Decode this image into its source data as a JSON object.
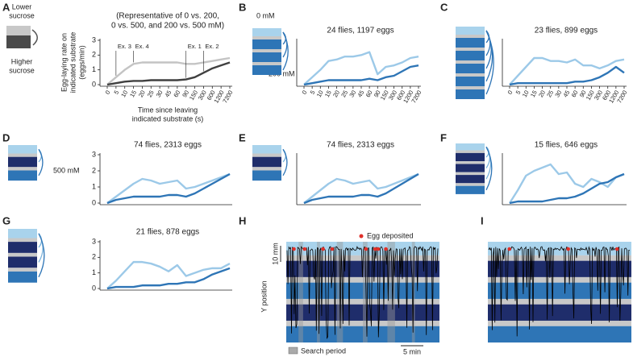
{
  "panel_labels": [
    "A",
    "B",
    "C",
    "D",
    "E",
    "F",
    "G",
    "H",
    "I"
  ],
  "schematic": {
    "lower": [
      "Lower",
      "sucrose"
    ],
    "higher": [
      "Higher",
      "sucrose"
    ],
    "concentrations": [
      "0 mM",
      "200 mM",
      "500 mM"
    ]
  },
  "trajectory": {
    "legend_egg": "Egg deposited",
    "scale_bar_y": "10 mm",
    "y_label": "Y position",
    "legend_search": "Search period",
    "scale_bar_x": "5 min"
  },
  "chart_data": [
    {
      "type": "line",
      "title": [
        "(Representative of 0 vs. 200,",
        "0 vs. 500, and 200 vs. 500 mM)"
      ],
      "y_label": [
        "Egg-laying rate on",
        "indicated substrate",
        "(eggs/min)"
      ],
      "x_label": [
        "Time since leaving",
        "indicated substrate (s)"
      ],
      "categories": [
        "0",
        "5",
        "10",
        "15",
        "20",
        "25",
        "30",
        "45",
        "60",
        "90",
        "150",
        "300",
        "600",
        "1200",
        "7200"
      ],
      "series": [
        {
          "color": "#c4c4c4",
          "values": [
            0,
            0.5,
            1.0,
            1.4,
            1.5,
            1.5,
            1.5,
            1.5,
            1.5,
            1.4,
            1.4,
            1.5,
            1.6,
            1.7,
            1.8
          ]
        },
        {
          "color": "#404040",
          "values": [
            0,
            0.1,
            0.2,
            0.25,
            0.25,
            0.3,
            0.3,
            0.3,
            0.3,
            0.35,
            0.5,
            0.8,
            1.1,
            1.3,
            1.5
          ]
        }
      ],
      "ylim": [
        0,
        3
      ],
      "yticks": [
        0,
        1,
        2,
        3
      ],
      "annotations": [
        "Ex. 3",
        "Ex. 4",
        "Ex. 1",
        "Ex. 2"
      ]
    },
    {
      "type": "line",
      "title": "24 flies, 1197 eggs",
      "categories": [
        "0",
        "5",
        "10",
        "15",
        "20",
        "25",
        "30",
        "45",
        "60",
        "90",
        "150",
        "300",
        "600",
        "1200",
        "7200"
      ],
      "series": [
        {
          "color": "#9cc9e8",
          "values": [
            0,
            0.5,
            1.0,
            1.6,
            1.7,
            1.9,
            1.9,
            2.0,
            2.2,
            0.7,
            1.2,
            1.3,
            1.5,
            1.8,
            1.9
          ]
        },
        {
          "color": "#2e75b6",
          "values": [
            0,
            0.1,
            0.2,
            0.3,
            0.3,
            0.3,
            0.3,
            0.3,
            0.4,
            0.3,
            0.5,
            0.6,
            0.9,
            1.2,
            1.3
          ]
        }
      ],
      "ylim": [
        0,
        3
      ]
    },
    {
      "type": "line",
      "title": "23 flies, 899 eggs",
      "categories": [
        "0",
        "5",
        "10",
        "15",
        "20",
        "25",
        "30",
        "45",
        "60",
        "90",
        "150",
        "300",
        "600",
        "1200",
        "7200"
      ],
      "series": [
        {
          "color": "#9cc9e8",
          "values": [
            0,
            0.6,
            1.2,
            1.8,
            1.8,
            1.6,
            1.6,
            1.5,
            1.7,
            1.3,
            1.3,
            1.1,
            1.3,
            1.6,
            1.7
          ]
        },
        {
          "color": "#2e75b6",
          "values": [
            0,
            0.1,
            0.1,
            0.1,
            0.1,
            0.1,
            0.1,
            0.1,
            0.2,
            0.2,
            0.3,
            0.5,
            0.8,
            1.2,
            0.8
          ]
        }
      ],
      "ylim": [
        0,
        3
      ]
    },
    {
      "type": "line",
      "title": "74 flies, 2313 eggs",
      "categories": [
        null,
        null,
        null,
        null,
        null,
        null,
        null,
        null,
        null,
        null,
        null,
        null,
        null,
        null,
        null
      ],
      "series": [
        {
          "color": "#9cc9e8",
          "values": [
            0,
            0.4,
            0.8,
            1.2,
            1.5,
            1.4,
            1.2,
            1.3,
            1.4,
            0.9,
            1.0,
            1.2,
            1.4,
            1.6,
            1.8
          ]
        },
        {
          "color": "#2e75b6",
          "values": [
            0,
            0.2,
            0.3,
            0.4,
            0.4,
            0.4,
            0.4,
            0.5,
            0.5,
            0.4,
            0.6,
            0.9,
            1.2,
            1.5,
            1.8
          ]
        }
      ],
      "ylim": [
        0,
        3
      ],
      "yticks": [
        0,
        1,
        2,
        3
      ]
    },
    {
      "type": "line",
      "title": "74 flies, 2313 eggs",
      "categories": [
        null,
        null,
        null,
        null,
        null,
        null,
        null,
        null,
        null,
        null,
        null,
        null,
        null,
        null,
        null
      ],
      "series": [
        {
          "color": "#9cc9e8",
          "values": [
            0,
            0.4,
            0.8,
            1.2,
            1.5,
            1.4,
            1.2,
            1.3,
            1.4,
            0.9,
            1.0,
            1.2,
            1.4,
            1.6,
            1.8
          ]
        },
        {
          "color": "#2e75b6",
          "values": [
            0,
            0.2,
            0.3,
            0.4,
            0.4,
            0.4,
            0.4,
            0.5,
            0.5,
            0.4,
            0.6,
            0.9,
            1.2,
            1.5,
            1.8
          ]
        }
      ],
      "ylim": [
        0,
        3
      ]
    },
    {
      "type": "line",
      "title": "15 flies, 646 eggs",
      "categories": [
        null,
        null,
        null,
        null,
        null,
        null,
        null,
        null,
        null,
        null,
        null,
        null,
        null,
        null,
        null
      ],
      "series": [
        {
          "color": "#9cc9e8",
          "values": [
            0,
            0.8,
            1.7,
            2.0,
            2.2,
            2.4,
            1.8,
            1.9,
            1.2,
            1.0,
            1.5,
            1.3,
            1.0,
            1.6,
            1.8
          ]
        },
        {
          "color": "#2e75b6",
          "values": [
            0,
            0.1,
            0.1,
            0.1,
            0.1,
            0.2,
            0.3,
            0.3,
            0.4,
            0.6,
            0.9,
            1.2,
            1.3,
            1.6,
            1.8
          ]
        }
      ],
      "ylim": [
        0,
        3
      ]
    },
    {
      "type": "line",
      "title": "21 flies, 878 eggs",
      "categories": [
        null,
        null,
        null,
        null,
        null,
        null,
        null,
        null,
        null,
        null,
        null,
        null,
        null,
        null,
        null
      ],
      "series": [
        {
          "color": "#9cc9e8",
          "values": [
            0,
            0.5,
            1.1,
            1.7,
            1.7,
            1.6,
            1.4,
            1.1,
            1.5,
            0.8,
            1.0,
            1.2,
            1.3,
            1.3,
            1.6
          ]
        },
        {
          "color": "#2e75b6",
          "values": [
            0,
            0.1,
            0.1,
            0.1,
            0.2,
            0.2,
            0.2,
            0.3,
            0.3,
            0.4,
            0.4,
            0.6,
            0.9,
            1.1,
            1.3
          ]
        }
      ],
      "ylim": [
        0,
        3
      ],
      "yticks": [
        0,
        1,
        2,
        3
      ]
    }
  ]
}
